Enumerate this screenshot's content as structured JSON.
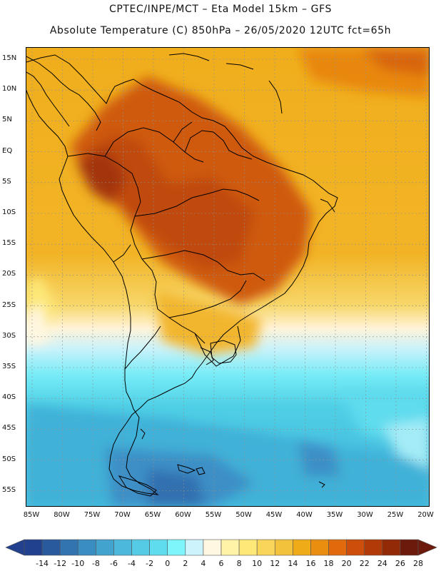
{
  "header": {
    "title_line1": "CPTEC/INPE/MCT –  Eta Model 15km – GFS",
    "title_line2": "Absolute Temperature (C) 850hPa – 26/05/2020 12UTC fct=65h"
  },
  "map": {
    "region": "South America",
    "variable": "Absolute Temperature (C) 850hPa",
    "lat_labels": [
      "15N",
      "10N",
      "5N",
      "EQ",
      "5S",
      "10S",
      "15S",
      "20S",
      "25S",
      "30S",
      "35S",
      "40S",
      "45S",
      "50S",
      "55S"
    ],
    "lon_labels": [
      "85W",
      "80W",
      "75W",
      "70W",
      "65W",
      "60W",
      "55W",
      "50W",
      "45W",
      "40W",
      "35W",
      "30W",
      "25W",
      "20W"
    ],
    "colors": {
      "background_ocean_warm": "#f0ae1c",
      "land_hot": "#c8520e",
      "land_hottest": "#9e2e08",
      "cool_south": "#4fd2e6",
      "cold_south": "#3d9fcf",
      "coldest": "#2f6fae",
      "boundary": "#000000",
      "grid": "#888888"
    }
  },
  "colorbar": {
    "labels": [
      "-14",
      "-12",
      "-10",
      "-8",
      "-6",
      "-4",
      "-2",
      "0",
      "2",
      "4",
      "6",
      "8",
      "10",
      "12",
      "14",
      "16",
      "18",
      "20",
      "22",
      "24",
      "26",
      "28"
    ],
    "colors": [
      "#21418e",
      "#2a5a9e",
      "#3274b0",
      "#3a8dc0",
      "#42a3ce",
      "#4cb9dc",
      "#55cbe6",
      "#5fdcee",
      "#7ef4fb",
      "#cdf4fd",
      "#fff7e1",
      "#fff3a8",
      "#fde878",
      "#f9d55a",
      "#f3c23c",
      "#efab18",
      "#ea8e10",
      "#e06a0c",
      "#cc4e0a",
      "#b23a08",
      "#922a08",
      "#6c1a0c"
    ]
  }
}
